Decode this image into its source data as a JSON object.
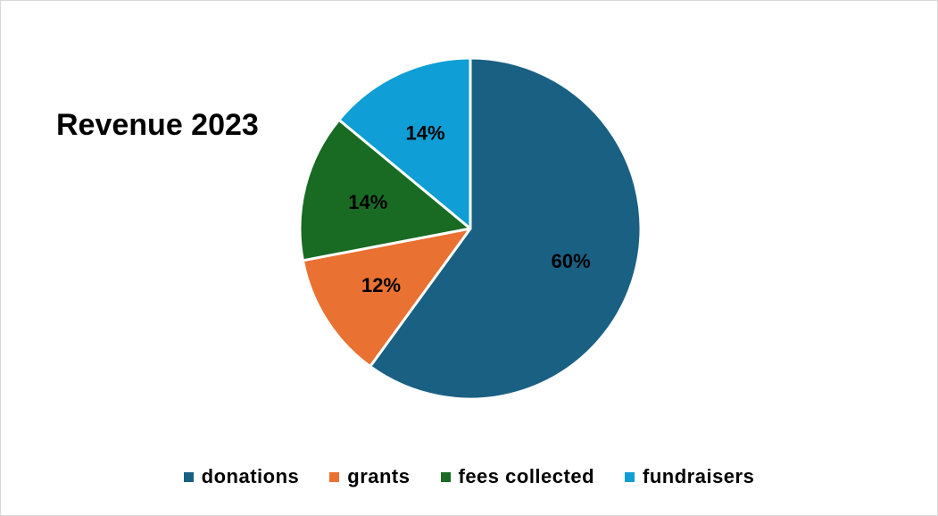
{
  "chart_data": {
    "type": "pie",
    "title": "Revenue 2023",
    "slices": [
      {
        "name": "donations",
        "value": 60,
        "label": "60%",
        "color": "#1a6083"
      },
      {
        "name": "grants",
        "value": 12,
        "label": "12%",
        "color": "#e97132"
      },
      {
        "name": "fees collected",
        "value": 14,
        "label": "14%",
        "color": "#196b24"
      },
      {
        "name": "fundraisers",
        "value": 14,
        "label": "14%",
        "color": "#0f9ed5"
      }
    ],
    "start_angle_deg": 0,
    "direction": "clockwise",
    "legend_position": "bottom",
    "slice_border_color": "#ffffff"
  }
}
